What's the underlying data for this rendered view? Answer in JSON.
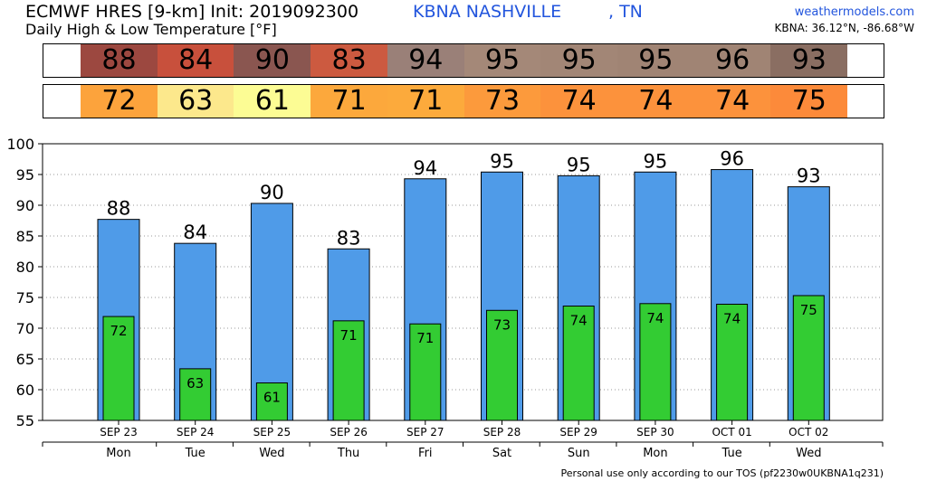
{
  "header": {
    "model_line": "ECMWF HRES [9-km] Init: 2019092300",
    "subtitle": "Daily High & Low Temperature [°F]",
    "station": "KBNA NASHVILLE",
    "state": ", TN",
    "brand": "weathermodels.com",
    "coords": "KBNA: 36.12°N, -86.68°W"
  },
  "high_strip": {
    "values": [
      "88",
      "84",
      "90",
      "83",
      "94",
      "95",
      "95",
      "95",
      "96",
      "93"
    ],
    "colors": [
      "#9c4840",
      "#c8503c",
      "#8a5650",
      "#cc5a40",
      "#9a8078",
      "#a48878",
      "#a28676",
      "#a08474",
      "#a08474",
      "#8a6e62"
    ]
  },
  "low_strip": {
    "values": [
      "72",
      "63",
      "61",
      "71",
      "71",
      "73",
      "74",
      "74",
      "74",
      "75"
    ],
    "colors": [
      "#fca33c",
      "#fce88c",
      "#fcfc94",
      "#fca83c",
      "#fcaa3c",
      "#fc9a3c",
      "#fc923c",
      "#fc923c",
      "#fc923c",
      "#fc8a3a"
    ]
  },
  "chart_data": {
    "type": "bar",
    "categories": [
      "SEP 23",
      "SEP 24",
      "SEP 25",
      "SEP 26",
      "SEP 27",
      "SEP 28",
      "SEP 29",
      "SEP 30",
      "OCT 01",
      "OCT 02"
    ],
    "weekdays": [
      "Mon",
      "Tue",
      "Wed",
      "Thu",
      "Fri",
      "Sat",
      "Sun",
      "Mon",
      "Tue",
      "Wed"
    ],
    "series": [
      {
        "values": [
          87.7,
          83.8,
          90.3,
          82.9,
          94.3,
          95.4,
          94.8,
          95.4,
          95.8,
          93.0
        ],
        "color": "#4f9be8"
      },
      {
        "values": [
          71.9,
          63.4,
          61.1,
          71.2,
          70.7,
          72.9,
          73.6,
          74.0,
          73.9,
          75.3
        ],
        "color": "#33cc33"
      }
    ],
    "high_labels": [
      "88",
      "84",
      "90",
      "83",
      "94",
      "95",
      "95",
      "95",
      "96",
      "93"
    ],
    "low_labels": [
      "72",
      "63",
      "61",
      "71",
      "71",
      "73",
      "74",
      "74",
      "74",
      "75"
    ],
    "ylim": [
      55,
      100
    ],
    "yticks": [
      55,
      60,
      65,
      70,
      75,
      80,
      85,
      90,
      95,
      100
    ],
    "grid": true
  },
  "footer": {
    "text": "Personal use only according to our TOS (pf2230w0UKBNA1q231)"
  }
}
